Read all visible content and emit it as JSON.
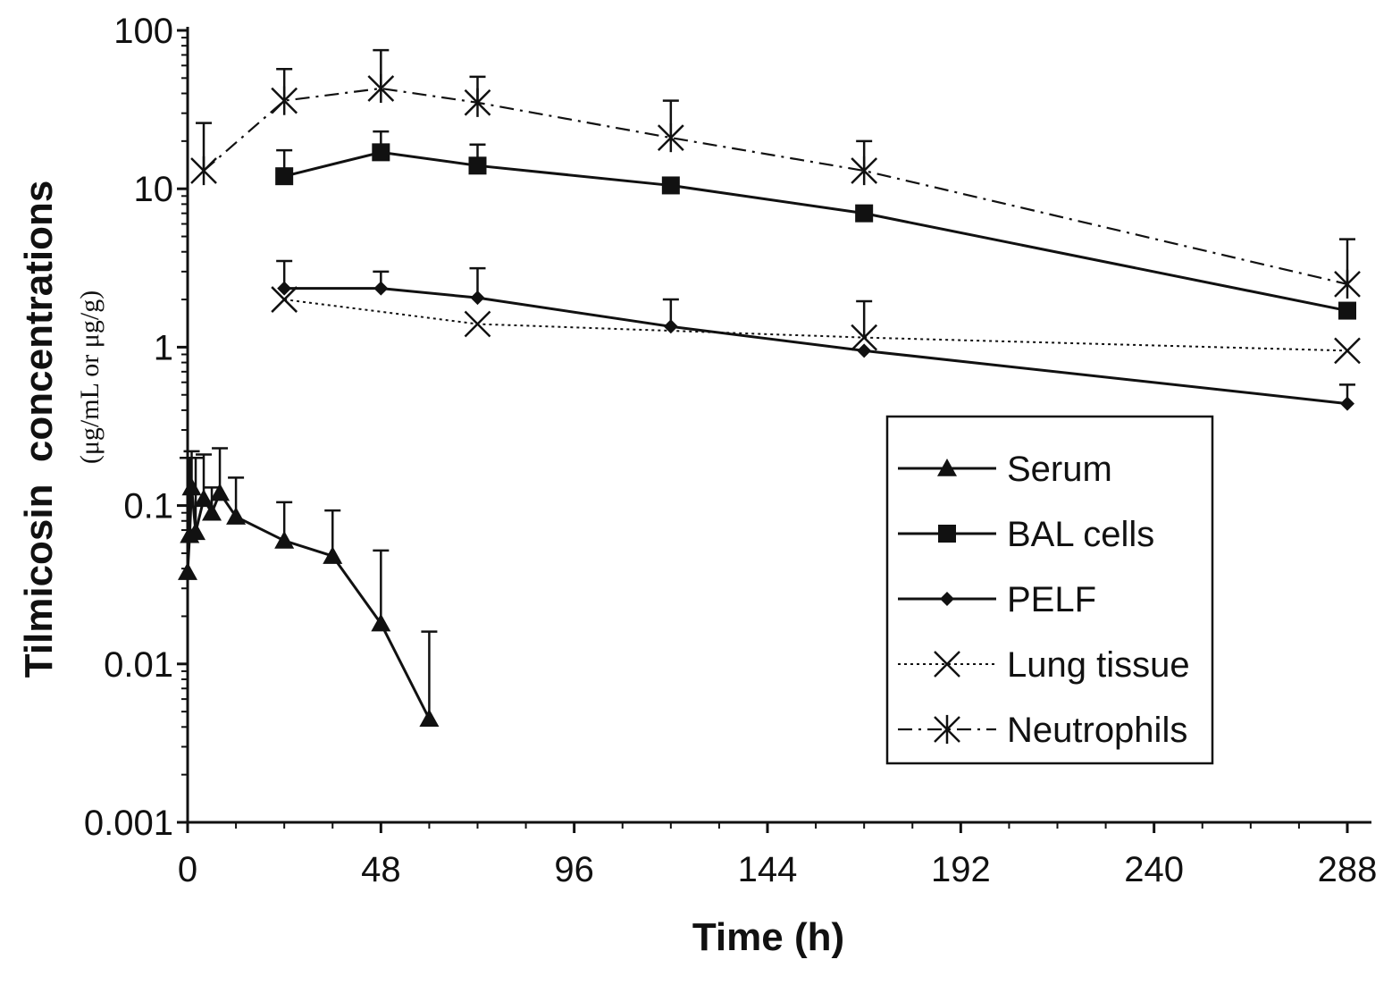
{
  "chart_data": {
    "type": "line",
    "title": "",
    "xlabel": "Time (h)",
    "ylabel": "Tilmicosin  concentrations",
    "ylabel_units": "(μg/mL or μg/g)",
    "y_scale": "log",
    "xlim": [
      0,
      294
    ],
    "ylim": [
      0.001,
      100
    ],
    "x_ticks": [
      0,
      48,
      96,
      144,
      192,
      240,
      288
    ],
    "x_tick_labels": [
      "0",
      "48",
      "96",
      "144",
      "192",
      "240",
      "288"
    ],
    "y_ticks": [
      0.001,
      0.01,
      0.1,
      1,
      10,
      100
    ],
    "y_tick_labels": [
      "0.001",
      "0.01",
      "0.1",
      "1",
      "10",
      "100"
    ],
    "grid": false,
    "legend_position": "right-middle",
    "series": [
      {
        "name": "Serum",
        "marker": "triangle",
        "line": "solid",
        "x": [
          0,
          0.5,
          1,
          2,
          4,
          6,
          8,
          12,
          24,
          36,
          48,
          60
        ],
        "y": [
          0.038,
          0.065,
          0.13,
          0.068,
          0.11,
          0.09,
          0.12,
          0.085,
          0.06,
          0.048,
          0.018,
          0.0045
        ],
        "err_upper": [
          0.2,
          0.2,
          0.22,
          0.2,
          0.21,
          0.13,
          0.23,
          0.15,
          0.105,
          0.093,
          0.052,
          0.016
        ]
      },
      {
        "name": "BAL cells",
        "marker": "square",
        "line": "solid",
        "x": [
          24,
          48,
          72,
          120,
          168,
          288
        ],
        "y": [
          12,
          17,
          14,
          10.5,
          7,
          1.7
        ],
        "err_upper": [
          17.5,
          23,
          19,
          null,
          null,
          null
        ]
      },
      {
        "name": "PELF",
        "marker": "diamond",
        "line": "solid",
        "x": [
          24,
          48,
          72,
          120,
          168,
          288
        ],
        "y": [
          2.35,
          2.35,
          2.05,
          1.35,
          0.95,
          0.44
        ],
        "err_upper": [
          3.5,
          3.0,
          3.15,
          2.0,
          null,
          0.58
        ]
      },
      {
        "name": "Lung tissue",
        "marker": "x",
        "line": "dotted",
        "x": [
          24,
          72,
          168,
          288
        ],
        "y": [
          2.0,
          1.4,
          1.15,
          0.95
        ],
        "err_upper": [
          null,
          null,
          1.95,
          null
        ]
      },
      {
        "name": "Neutrophils",
        "marker": "asterisk",
        "line": "dashdot",
        "x": [
          4,
          24,
          48,
          72,
          120,
          168,
          288
        ],
        "y": [
          13,
          36,
          43,
          35,
          21,
          13,
          2.5
        ],
        "err_upper": [
          26,
          57,
          75,
          51,
          36,
          20,
          4.8
        ]
      }
    ]
  }
}
